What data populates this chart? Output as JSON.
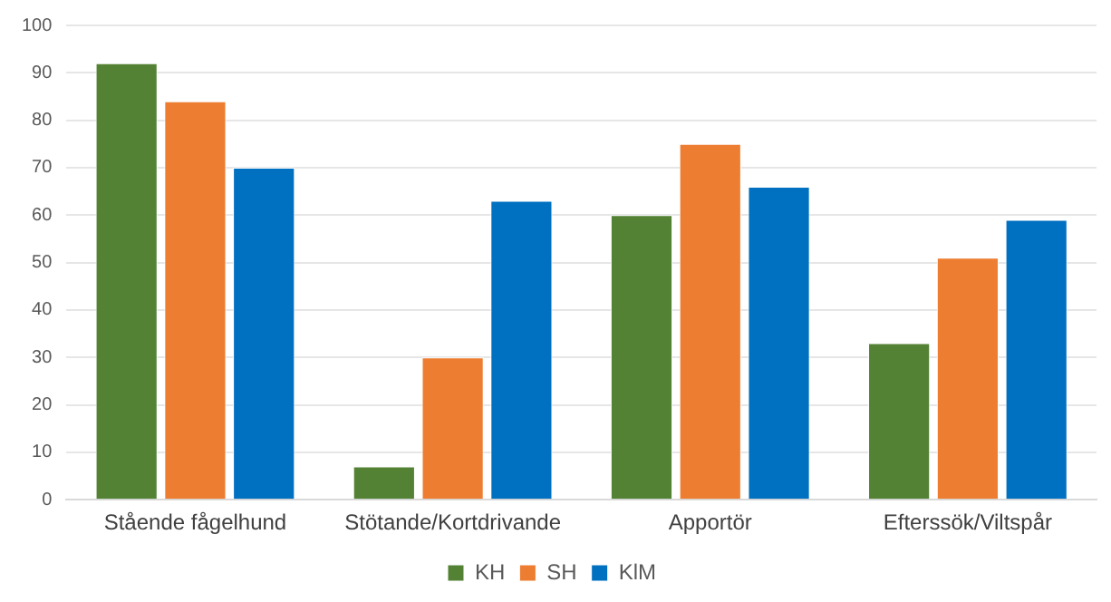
{
  "chart_data": {
    "type": "bar",
    "categories": [
      "Stående fågelhund",
      "Stötande/Kortdrivande",
      "Apportör",
      "Efterssök/Viltspår"
    ],
    "series": [
      {
        "name": "KH",
        "color": "#548235",
        "values": [
          92,
          7,
          60,
          33
        ]
      },
      {
        "name": "SH",
        "color": "#ed7d31",
        "values": [
          84,
          30,
          75,
          51
        ]
      },
      {
        "name": "KlM",
        "color": "#0070c0",
        "values": [
          70,
          63,
          66,
          59
        ]
      }
    ],
    "ylim": [
      0,
      100
    ],
    "yticks": [
      0,
      10,
      20,
      30,
      40,
      50,
      60,
      70,
      80,
      90,
      100
    ],
    "grid": "y",
    "legend": "bottom"
  }
}
